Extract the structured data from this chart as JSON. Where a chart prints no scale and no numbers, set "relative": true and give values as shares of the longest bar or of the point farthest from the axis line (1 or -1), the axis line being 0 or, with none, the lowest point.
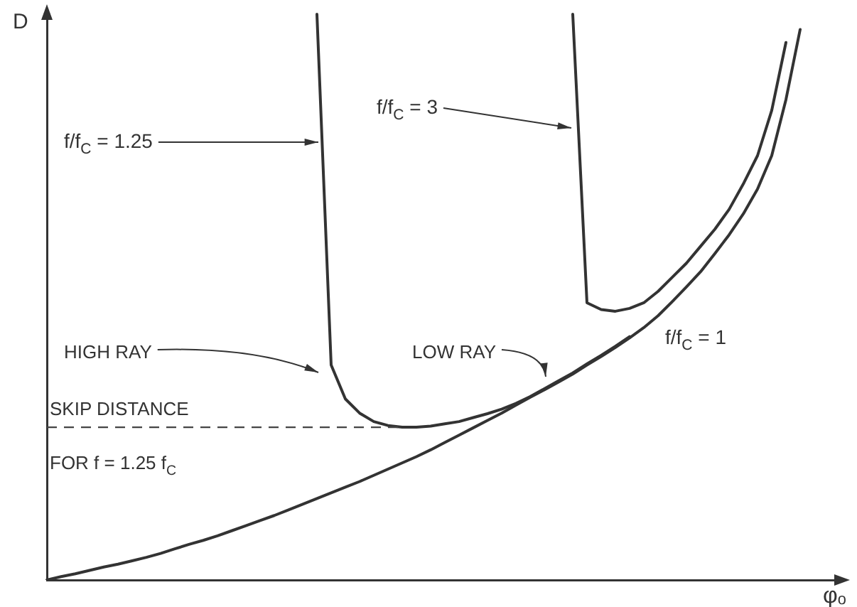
{
  "chart_data": {
    "type": "line",
    "relative": true,
    "xlabel": "φₒ",
    "ylabel": "D",
    "grid": false,
    "legend": false,
    "marker": "none",
    "line_style": "solid",
    "categories": [
      null,
      null,
      null,
      null,
      null,
      null,
      null,
      null,
      null,
      null,
      null,
      null,
      null,
      null,
      null,
      null,
      null,
      null,
      null,
      null,
      null,
      null,
      null,
      null,
      null,
      null,
      null,
      null,
      null,
      null,
      null,
      null,
      null,
      null,
      null,
      null,
      null,
      null,
      null,
      null,
      null,
      null,
      null,
      null,
      null,
      null,
      null,
      null,
      null,
      null,
      null,
      null,
      null,
      null,
      null,
      null,
      null
    ],
    "series": [
      {
        "name": "f/f$_{C}$ = 1",
        "color": "#333333",
        "values": [
          0,
          0.006,
          0.011,
          0.017,
          0.023,
          0.028,
          0.034,
          0.04,
          0.047,
          0.055,
          0.063,
          0.07,
          0.078,
          0.087,
          0.096,
          0.105,
          0.114,
          0.124,
          0.134,
          0.144,
          0.154,
          0.164,
          0.174,
          0.185,
          0.196,
          0.207,
          0.218,
          0.23,
          0.243,
          0.256,
          0.269,
          0.282,
          0.295,
          0.309,
          0.323,
          0.336,
          0.35,
          0.364,
          0.38,
          0.395,
          0.411,
          0.428,
          0.446,
          0.467,
          0.492,
          0.518,
          0.545,
          0.577,
          0.61,
          0.647,
          0.691,
          0.75,
          0.849,
          0.973,
          null,
          null,
          null
        ]
      },
      {
        "name": "f/f$_{C}$ = 1.25",
        "color": "#333333",
        "values": [
          null,
          null,
          null,
          null,
          null,
          null,
          null,
          null,
          null,
          null,
          null,
          null,
          null,
          null,
          null,
          null,
          null,
          null,
          null,
          1.0,
          0.38,
          0.32,
          0.295,
          0.28,
          0.273,
          0.27,
          0.27,
          0.272,
          0.276,
          0.28,
          0.287,
          0.294,
          0.302,
          0.312,
          0.324,
          0.338,
          0.352,
          0.366,
          0.382,
          0.397,
          0.413,
          0.43,
          null,
          null,
          null,
          null,
          null,
          null,
          null,
          null,
          null,
          null,
          null,
          null,
          null,
          null,
          null
        ]
      },
      {
        "name": "f/f$_{C}$ = 3",
        "color": "#333333",
        "values": [
          null,
          null,
          null,
          null,
          null,
          null,
          null,
          null,
          null,
          null,
          null,
          null,
          null,
          null,
          null,
          null,
          null,
          null,
          null,
          null,
          null,
          null,
          null,
          null,
          null,
          null,
          null,
          null,
          null,
          null,
          null,
          null,
          null,
          null,
          null,
          null,
          null,
          1.0,
          0.49,
          0.478,
          0.475,
          0.48,
          0.49,
          0.51,
          0.535,
          0.56,
          0.59,
          0.62,
          0.655,
          0.7,
          0.75,
          0.83,
          0.95,
          null,
          null,
          null,
          null
        ]
      }
    ],
    "ref_lines": [
      {
        "axis": "y",
        "value": 0.27,
        "line_style": "dashed",
        "color": "#444444"
      }
    ],
    "annotations": [
      "HIGH RAY",
      "LOW RAY",
      "SKIP DISTANCE",
      "FOR f = 1.25 f$_{C}$"
    ]
  }
}
